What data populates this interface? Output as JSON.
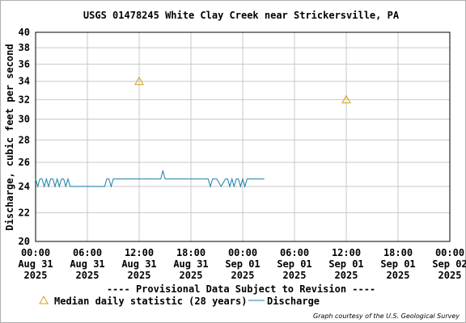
{
  "chart_data": {
    "type": "line",
    "title": "USGS 01478245 White Clay Creek near Strickersville, PA",
    "ylabel": "Discharge, cubic feet per second",
    "ylim": [
      20,
      40
    ],
    "y_ticks": [
      20,
      22,
      24,
      26,
      28,
      30,
      32,
      34,
      36,
      38,
      40
    ],
    "y_scale": "log",
    "x_range_hours": [
      0,
      48
    ],
    "x_ticks": [
      {
        "time": "00:00",
        "date": "Aug 31",
        "year": "2025"
      },
      {
        "time": "06:00",
        "date": "Aug 31",
        "year": "2025"
      },
      {
        "time": "12:00",
        "date": "Aug 31",
        "year": "2025"
      },
      {
        "time": "18:00",
        "date": "Aug 31",
        "year": "2025"
      },
      {
        "time": "00:00",
        "date": "Sep 01",
        "year": "2025"
      },
      {
        "time": "06:00",
        "date": "Sep 01",
        "year": "2025"
      },
      {
        "time": "12:00",
        "date": "Sep 01",
        "year": "2025"
      },
      {
        "time": "18:00",
        "date": "Sep 01",
        "year": "2025"
      },
      {
        "time": "00:00",
        "date": "Sep 02",
        "year": "2025"
      }
    ],
    "grid": true,
    "series": [
      {
        "name": "Discharge",
        "color": "#1a7fa8",
        "style": "line",
        "x": [
          0,
          0.25,
          0.5,
          0.75,
          1.0,
          1.25,
          1.5,
          1.75,
          2.0,
          2.25,
          2.5,
          2.75,
          3.0,
          3.25,
          3.5,
          3.75,
          4.0,
          5.0,
          6.0,
          7.0,
          8.0,
          8.25,
          8.5,
          8.75,
          9.0,
          9.25,
          10.0,
          12.0,
          14.0,
          14.5,
          14.75,
          15.0,
          15.25,
          16.0,
          18.0,
          20.0,
          20.25,
          20.5,
          20.75,
          21.0,
          21.5,
          22.0,
          22.25,
          22.5,
          22.75,
          23.0,
          23.25,
          23.5,
          23.75,
          24.0,
          24.25,
          24.5,
          25.0,
          26.5
        ],
        "y": [
          24.6,
          24.0,
          24.6,
          24.6,
          24.0,
          24.6,
          24.0,
          24.6,
          24.6,
          24.0,
          24.6,
          24.0,
          24.6,
          24.6,
          24.0,
          24.6,
          24.0,
          24.0,
          24.0,
          24.0,
          24.0,
          24.6,
          24.6,
          24.0,
          24.6,
          24.6,
          24.6,
          24.6,
          24.6,
          24.6,
          25.3,
          24.6,
          24.6,
          24.6,
          24.6,
          24.6,
          24.0,
          24.6,
          24.6,
          24.6,
          24.0,
          24.6,
          24.6,
          24.0,
          24.6,
          24.0,
          24.6,
          24.6,
          24.0,
          24.6,
          24.0,
          24.6,
          24.6,
          24.6
        ]
      },
      {
        "name": "Median daily statistic (28 years)",
        "color": "#d4a017",
        "style": "marker-triangle",
        "x": [
          12,
          36
        ],
        "y": [
          34,
          32
        ]
      }
    ],
    "legend": "bottom",
    "banner": "---- Provisional Data Subject to Revision ----",
    "banner_color": "#cc0000",
    "credit": "Graph courtesy of the U.S. Geological Survey"
  }
}
